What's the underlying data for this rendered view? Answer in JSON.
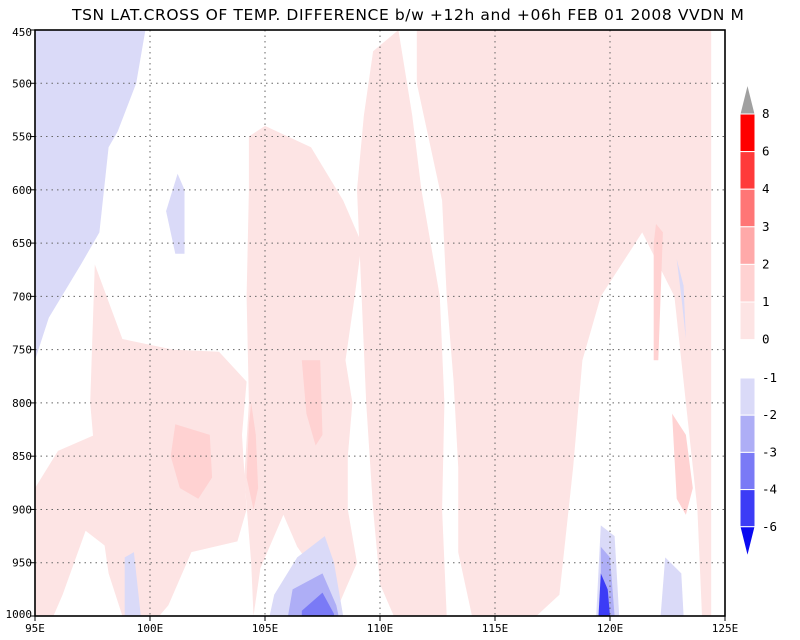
{
  "chart_data": {
    "type": "filled-contour",
    "title": "TSN LAT.CROSS OF TEMP. DIFFERENCE b/w +12h and +06h FEB 01 2008 VVDN M",
    "x_ticks": [
      "95E",
      "100E",
      "105E",
      "110E",
      "115E",
      "120E",
      "125E"
    ],
    "x_values": [
      95,
      100,
      105,
      110,
      115,
      120,
      125
    ],
    "xlim": [
      95,
      125
    ],
    "y_ticks": [
      "450",
      "500",
      "550",
      "600",
      "650",
      "700",
      "750",
      "800",
      "850",
      "900",
      "950",
      "1000"
    ],
    "y_values": [
      450,
      500,
      550,
      600,
      650,
      700,
      750,
      800,
      850,
      900,
      950,
      1000
    ],
    "ylim": [
      450,
      1000
    ],
    "grid": true,
    "colorbar": {
      "position": "right",
      "positive_labels": [
        "8",
        "6",
        "4",
        "3",
        "2",
        "1",
        "0"
      ],
      "negative_labels": [
        "-1",
        "-2",
        "-3",
        "-4",
        "-6"
      ],
      "positive_colors": [
        "#a0a0a0",
        "#ff0000",
        "#ff3a3a",
        "#ff7676",
        "#ffa9a9",
        "#ffd2d2",
        "#fde4e4"
      ],
      "negative_colors": [
        "#dadaf8",
        "#aeaef6",
        "#7a7af6",
        "#3c3cf6",
        "#0a0af0"
      ]
    },
    "regions": [
      {
        "level": "0 to 1",
        "color": "#fde4e4",
        "points": [
          [
            111.6,
            450
          ],
          [
            124.4,
            450
          ],
          [
            124.4,
            1000
          ],
          [
            124,
            1000
          ],
          [
            123.8,
            900
          ],
          [
            122.8,
            700
          ],
          [
            121.4,
            640
          ],
          [
            119.6,
            700
          ],
          [
            118.8,
            760
          ],
          [
            118.4,
            860
          ],
          [
            117.8,
            980
          ],
          [
            116.8,
            1000
          ],
          [
            114,
            1000
          ],
          [
            113.4,
            940
          ],
          [
            113.4,
            860
          ],
          [
            113.2,
            780
          ],
          [
            112.9,
            700
          ],
          [
            112.7,
            610
          ],
          [
            112.2,
            560
          ],
          [
            111.6,
            500
          ]
        ]
      },
      {
        "level": "0 to 1",
        "color": "#fde4e4",
        "points": [
          [
            109.7,
            470
          ],
          [
            110.8,
            450
          ],
          [
            111.4,
            530
          ],
          [
            111.8,
            600
          ],
          [
            112.6,
            700
          ],
          [
            112.8,
            800
          ],
          [
            112.7,
            900
          ],
          [
            112.9,
            1000
          ],
          [
            110.6,
            1000
          ],
          [
            110,
            970
          ],
          [
            109.7,
            900
          ],
          [
            109.4,
            800
          ],
          [
            109.2,
            700
          ],
          [
            109,
            600
          ],
          [
            109.3,
            530
          ]
        ]
      },
      {
        "level": "0 to 1",
        "color": "#fde4e4",
        "points": [
          [
            104.3,
            550
          ],
          [
            105,
            540
          ],
          [
            107,
            560
          ],
          [
            108.4,
            610
          ],
          [
            109.2,
            650
          ],
          [
            108.9,
            700
          ],
          [
            108.5,
            760
          ],
          [
            108.8,
            800
          ],
          [
            108.6,
            850
          ],
          [
            108.6,
            900
          ],
          [
            109,
            950
          ],
          [
            108.2,
            990
          ],
          [
            106.4,
            935
          ],
          [
            105.8,
            905
          ],
          [
            104.8,
            955
          ],
          [
            104.5,
            1000
          ],
          [
            104.4,
            950
          ],
          [
            104.1,
            870
          ],
          [
            104.3,
            800
          ],
          [
            104.2,
            700
          ],
          [
            104.3,
            600
          ]
        ]
      },
      {
        "level": "0 to 1",
        "color": "#fde4e4",
        "points": [
          [
            97.6,
            670
          ],
          [
            98.8,
            740
          ],
          [
            101,
            750
          ],
          [
            103,
            752
          ],
          [
            104.2,
            780
          ],
          [
            104,
            830
          ],
          [
            104.2,
            900
          ],
          [
            103.8,
            930
          ],
          [
            101.8,
            940
          ],
          [
            100.8,
            990
          ],
          [
            100.4,
            1000
          ],
          [
            98.8,
            1000
          ],
          [
            98.2,
            960
          ],
          [
            97.8,
            900
          ],
          [
            97.4,
            800
          ]
        ]
      },
      {
        "level": "0 to 1",
        "color": "#fde4e4",
        "points": [
          [
            95,
            880
          ],
          [
            96,
            845
          ],
          [
            97.6,
            830
          ],
          [
            98.2,
            870
          ],
          [
            98.4,
            940
          ],
          [
            97.2,
            920
          ],
          [
            96.2,
            980
          ],
          [
            95.8,
            1000
          ],
          [
            95,
            1000
          ]
        ]
      },
      {
        "level": "1 to 2",
        "color": "#ffd2d2",
        "points": [
          [
            101.1,
            820
          ],
          [
            102.6,
            830
          ],
          [
            102.7,
            870
          ],
          [
            102.1,
            890
          ],
          [
            101.3,
            880
          ],
          [
            100.9,
            850
          ]
        ]
      },
      {
        "level": "1 to 2",
        "color": "#ffd2d2",
        "points": [
          [
            106.6,
            760
          ],
          [
            107.4,
            760
          ],
          [
            107.5,
            830
          ],
          [
            107.2,
            840
          ],
          [
            106.8,
            810
          ]
        ]
      },
      {
        "level": "1 to 2",
        "color": "#ffd2d2",
        "points": [
          [
            104.4,
            800
          ],
          [
            104.6,
            830
          ],
          [
            104.7,
            880
          ],
          [
            104.5,
            900
          ],
          [
            104.2,
            870
          ],
          [
            104.3,
            820
          ]
        ]
      },
      {
        "level": "1 to 2",
        "color": "#ffd2d2",
        "points": [
          [
            122,
            632
          ],
          [
            122.3,
            640
          ],
          [
            122.2,
            700
          ],
          [
            122.1,
            760
          ],
          [
            121.9,
            760
          ],
          [
            121.9,
            700
          ],
          [
            121.9,
            650
          ]
        ]
      },
      {
        "level": "1 to 2",
        "color": "#ffd2d2",
        "points": [
          [
            122.7,
            810
          ],
          [
            123.3,
            830
          ],
          [
            123.6,
            880
          ],
          [
            123.3,
            905
          ],
          [
            122.9,
            890
          ],
          [
            122.8,
            850
          ]
        ]
      },
      {
        "level": "-1 to 0",
        "color": "#dadaf8",
        "points": [
          [
            95,
            450
          ],
          [
            99.8,
            450
          ],
          [
            99.4,
            500
          ],
          [
            98.6,
            545
          ],
          [
            98.2,
            560
          ],
          [
            97.8,
            640
          ],
          [
            97,
            670
          ],
          [
            95.6,
            720
          ],
          [
            95,
            760
          ]
        ]
      },
      {
        "level": "-1 to 0",
        "color": "#dadaf8",
        "points": [
          [
            100.7,
            620
          ],
          [
            101.2,
            585
          ],
          [
            101.5,
            600
          ],
          [
            101.5,
            660
          ],
          [
            101.1,
            660
          ]
        ]
      },
      {
        "level": "-1 to 0",
        "color": "#dadaf8",
        "points": [
          [
            122.9,
            665
          ],
          [
            123.2,
            690
          ],
          [
            123.3,
            740
          ],
          [
            123.1,
            700
          ]
        ]
      },
      {
        "level": "-1 to 0",
        "color": "#dadaf8",
        "points": [
          [
            105.4,
            980
          ],
          [
            106.4,
            945
          ],
          [
            107.6,
            925
          ],
          [
            108,
            950
          ],
          [
            108.4,
            1000
          ],
          [
            105.2,
            1000
          ]
        ]
      },
      {
        "level": "-1 to 0",
        "color": "#dadaf8",
        "points": [
          [
            119.6,
            915
          ],
          [
            120.2,
            925
          ],
          [
            120.4,
            1000
          ],
          [
            119.4,
            1000
          ]
        ]
      },
      {
        "level": "-1 to 0",
        "color": "#dadaf8",
        "points": [
          [
            122.4,
            945
          ],
          [
            123.1,
            960
          ],
          [
            123.2,
            1000
          ],
          [
            122.2,
            1000
          ]
        ]
      },
      {
        "level": "-1 to 0",
        "color": "#dadaf8",
        "points": [
          [
            98.9,
            945
          ],
          [
            99.3,
            940
          ],
          [
            99.6,
            1000
          ],
          [
            98.9,
            1000
          ]
        ]
      },
      {
        "level": "-2 to -1",
        "color": "#aeaef6",
        "points": [
          [
            106.2,
            975
          ],
          [
            107.5,
            960
          ],
          [
            108.1,
            990
          ],
          [
            108.2,
            1000
          ],
          [
            106,
            1000
          ]
        ]
      },
      {
        "level": "-2 to -1",
        "color": "#aeaef6",
        "points": [
          [
            119.6,
            935
          ],
          [
            120,
            945
          ],
          [
            120.2,
            1000
          ],
          [
            119.6,
            1000
          ]
        ]
      },
      {
        "level": "-3 to -2",
        "color": "#7a7af6",
        "points": [
          [
            106.6,
            995
          ],
          [
            107.5,
            978
          ],
          [
            108,
            998
          ],
          [
            108,
            1000
          ],
          [
            106.6,
            1000
          ]
        ]
      },
      {
        "level": "-4 to -3",
        "color": "#3c3cf6",
        "points": [
          [
            119.6,
            960
          ],
          [
            119.9,
            975
          ],
          [
            120,
            1000
          ],
          [
            119.5,
            1000
          ]
        ]
      }
    ]
  }
}
